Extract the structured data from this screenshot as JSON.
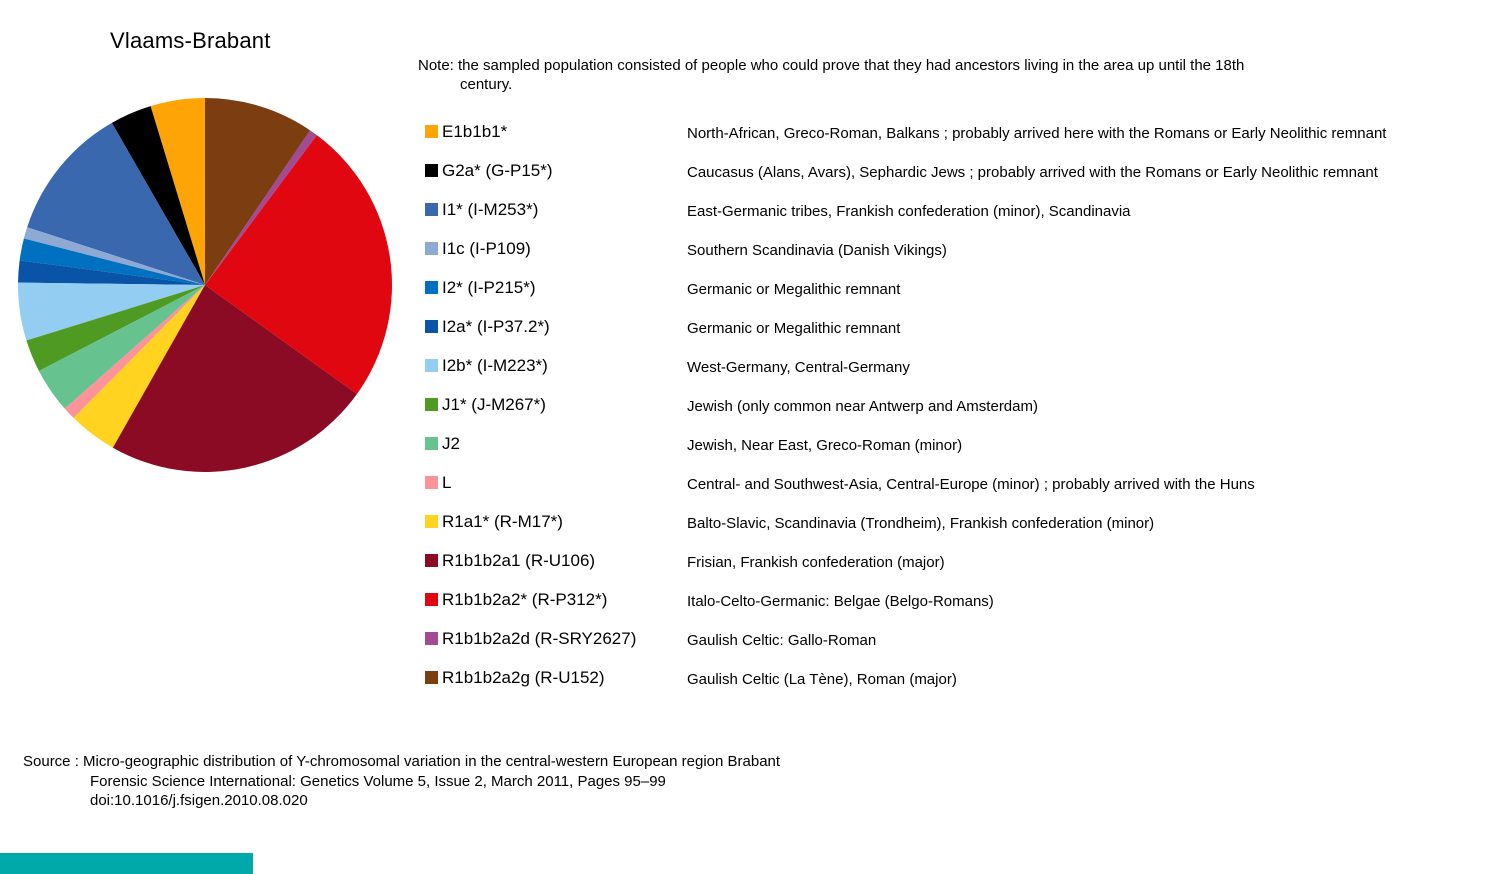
{
  "title": "Vlaams-Brabant",
  "note": {
    "line1": "Note: the sampled population consisted of people who could prove that they had ancestors living in the area up until the 18th",
    "line2": "century."
  },
  "source": {
    "line1": "Source : Micro-geographic distribution of Y-chromosomal variation in the central-western European region Brabant",
    "line2": "Forensic Science International: Genetics Volume 5, Issue 2, March 2011, Pages 95–99",
    "line3": "doi:10.1016/j.fsigen.2010.08.020"
  },
  "footer_bar": {
    "color": "#00A9A9"
  },
  "chart_data": {
    "type": "pie",
    "title": "Vlaams-Brabant",
    "units": "percent (estimated from slice angles; no numeric labels shown in image)",
    "start_angle_deg": -90,
    "direction": "counterclockwise",
    "legend_position": "right",
    "slices": [
      {
        "label": "E1b1b1*",
        "value": 4.7,
        "color": "#FFA407",
        "description": "North-African, Greco-Roman, Balkans ; probably arrived here with the Romans or Early Neolithic remnant"
      },
      {
        "label": "G2a* (G-P15*)",
        "value": 3.6,
        "color": "#000000",
        "description": "Caucasus (Alans, Avars), Sephardic Jews ; probably arrived with the Romans or Early Neolithic remnant"
      },
      {
        "label": "I1* (I-M253*)",
        "value": 11.7,
        "color": "#3A68AE",
        "description": "East-Germanic tribes, Frankish confederation (minor), Scandinavia"
      },
      {
        "label": "I1c (I-P109)",
        "value": 1.0,
        "color": "#8DA9D4",
        "description": "Southern Scandinavia (Danish Vikings)"
      },
      {
        "label": "I2* (I-P215*)",
        "value": 1.9,
        "color": "#0070C0",
        "description": "Germanic or Megalithic remnant"
      },
      {
        "label": "I2a* (I-P37.2*)",
        "value": 1.9,
        "color": "#0A54A8",
        "description": "Germanic or Megalithic remnant"
      },
      {
        "label": "I2b* (I-M223*)",
        "value": 5.0,
        "color": "#93CDF1",
        "description": "West-Germany, Central-Germany"
      },
      {
        "label": "J1* (J-M267*)",
        "value": 2.8,
        "color": "#4E9A23",
        "description": "Jewish  (only common near Antwerp and Amsterdam)"
      },
      {
        "label": "J2",
        "value": 3.9,
        "color": "#66C28F",
        "description": "Jewish, Near East, Greco-Roman (minor)"
      },
      {
        "label": "L",
        "value": 1.1,
        "color": "#FB9399",
        "description": "Central- and Southwest-Asia, Central-Europe (minor) ; probably arrived with the Huns"
      },
      {
        "label": "R1a1* (R-M17*)",
        "value": 4.2,
        "color": "#FFD320",
        "description": "Balto-Slavic, Scandinavia (Trondheim), Frankish confederation (minor)"
      },
      {
        "label": "R1b1b2a1 (R-U106)",
        "value": 23.3,
        "color": "#8C0B24",
        "description": "Frisian, Frankish confederation (major)"
      },
      {
        "label": "R1b1b2a2* (R-P312*)",
        "value": 24.7,
        "color": "#E00710",
        "description": "Italo-Celto-Germanic: Belgae (Belgo-Romans)"
      },
      {
        "label": "R1b1b2a2d (R-SRY2627)",
        "value": 0.7,
        "color": "#A24A93",
        "description": "Gaulish Celtic: Gallo-Roman"
      },
      {
        "label": "R1b1b2a2g (R-U152)",
        "value": 9.5,
        "color": "#7C3D10",
        "description": "Gaulish Celtic (La Tène), Roman  (major)"
      }
    ]
  }
}
